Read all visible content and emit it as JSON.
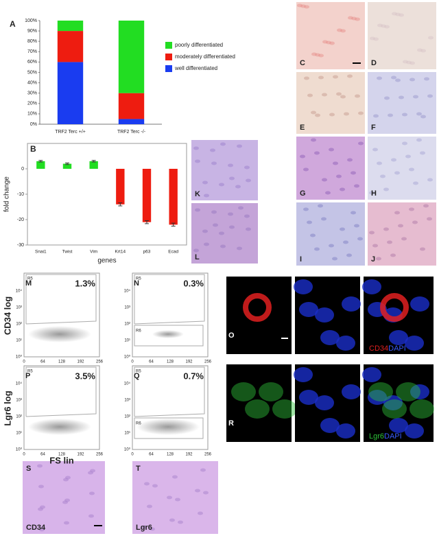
{
  "chart_data": [
    {
      "type": "stacked_bar",
      "panel": "A",
      "categories": [
        "TRF2 Terc +/+",
        "TRF2 Terc -/-"
      ],
      "series": [
        {
          "name": "well differentiated",
          "color": "#1a3cf0",
          "values": [
            60,
            5
          ]
        },
        {
          "name": "moderately differentiated",
          "color": "#ee1c10",
          "values": [
            30,
            25
          ]
        },
        {
          "name": "poorly differentiated",
          "color": "#22dd22",
          "values": [
            10,
            70
          ]
        }
      ],
      "ylim": [
        0,
        100
      ],
      "yticks": [
        {
          "value": 0,
          "label": "0%"
        },
        {
          "value": 10,
          "label": "10%"
        },
        {
          "value": 20,
          "label": "20%"
        },
        {
          "value": 30,
          "label": "30%"
        },
        {
          "value": 40,
          "label": "40%"
        },
        {
          "value": 50,
          "label": "50%"
        },
        {
          "value": 60,
          "label": "60%"
        },
        {
          "value": 70,
          "label": "70%"
        },
        {
          "value": 80,
          "label": "80%"
        },
        {
          "value": 90,
          "label": "90%"
        },
        {
          "value": 100,
          "label": "100%"
        }
      ]
    },
    {
      "type": "bar",
      "panel": "B",
      "categories": [
        "Snai1",
        "Twist",
        "Vim",
        "Krt14",
        "p63",
        "Ecad"
      ],
      "values": [
        3,
        2,
        3,
        -14,
        -21,
        -22
      ],
      "errors": [
        0.3,
        0.3,
        0.3,
        0.6,
        0.6,
        0.6
      ],
      "colors": [
        "#22dd22",
        "#22dd22",
        "#22dd22",
        "#ee1c10",
        "#ee1c10",
        "#ee1c10"
      ],
      "ylim": [
        -30,
        10
      ],
      "yticks": [
        0,
        -10,
        -20,
        -30
      ],
      "xlabel": "genes",
      "ylabel": "fold change"
    }
  ],
  "micrographs": [
    {
      "letter": "C"
    },
    {
      "letter": "D"
    },
    {
      "letter": "E"
    },
    {
      "letter": "F"
    },
    {
      "letter": "G"
    },
    {
      "letter": "H"
    },
    {
      "letter": "I"
    },
    {
      "letter": "J"
    },
    {
      "letter": "K"
    },
    {
      "letter": "L"
    },
    {
      "letter": "S",
      "label": "CD34"
    },
    {
      "letter": "T",
      "label": "Lgr6"
    }
  ],
  "flow": {
    "y_ticks": [
      "10⁴",
      "10³",
      "10²",
      "10¹",
      "10⁰"
    ],
    "x_ticks": [
      "0",
      "64",
      "128",
      "192",
      "256"
    ],
    "y_labels": [
      "CD34 log",
      "Lgr6 log"
    ],
    "x_label": "FS lin",
    "panels": [
      {
        "letter": "M",
        "percent": "1.3%",
        "gates": [
          "R5"
        ]
      },
      {
        "letter": "N",
        "percent": "0.3%",
        "gates": [
          "R5",
          "R6"
        ]
      },
      {
        "letter": "P",
        "percent": "3.5%",
        "gates": [
          "R5"
        ]
      },
      {
        "letter": "Q",
        "percent": "0.7%",
        "gates": [
          "R5",
          "R6"
        ]
      }
    ]
  },
  "fluorescence": [
    {
      "letter": "O",
      "stain": "CD34",
      "counter": "DAPI"
    },
    {
      "letter": "R",
      "stain": "Lgr6",
      "counter": "DAPI"
    }
  ]
}
